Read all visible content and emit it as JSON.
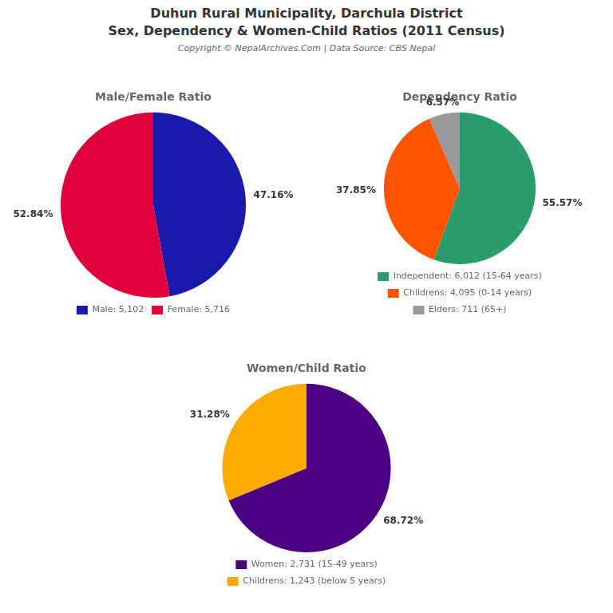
{
  "title": [
    "Duhun Rural Municipality, Darchula District",
    "Sex, Dependency & Women-Child Ratios (2011 Census)"
  ],
  "subtitle": "Copyright © NepalArchives.Com | Data Source: CBS Nepal",
  "chart_data": [
    {
      "type": "pie",
      "title": "Male/Female Ratio",
      "categories": [
        "Male: 5,102",
        "Female: 5,716"
      ],
      "values": [
        47.16,
        52.84
      ],
      "value_labels": [
        "47.16%",
        "52.84%"
      ],
      "colors": [
        "#1a1aaa",
        "#e0003c"
      ],
      "data_labels": true,
      "legend": "bottom"
    },
    {
      "type": "pie",
      "title": "Dependency Ratio",
      "categories": [
        "Independent: 6,012 (15-64 years)",
        "Childrens: 4,095 (0-14 years)",
        "Elders: 711 (65+)"
      ],
      "values": [
        55.57,
        37.85,
        6.57
      ],
      "value_labels": [
        "55.57%",
        "37.85%",
        "6.57%"
      ],
      "colors": [
        "#2a9d6a",
        "#ff5500",
        "#999999"
      ],
      "data_labels": true,
      "legend": "bottom"
    },
    {
      "type": "pie",
      "title": "Women/Child Ratio",
      "categories": [
        "Women: 2,731 (15-49 years)",
        "Childrens: 1,243 (below 5 years)"
      ],
      "values": [
        68.72,
        31.28
      ],
      "value_labels": [
        "68.72%",
        "31.28%"
      ],
      "colors": [
        "#4b0082",
        "#ffaa00"
      ],
      "data_labels": true,
      "legend": "bottom"
    }
  ]
}
